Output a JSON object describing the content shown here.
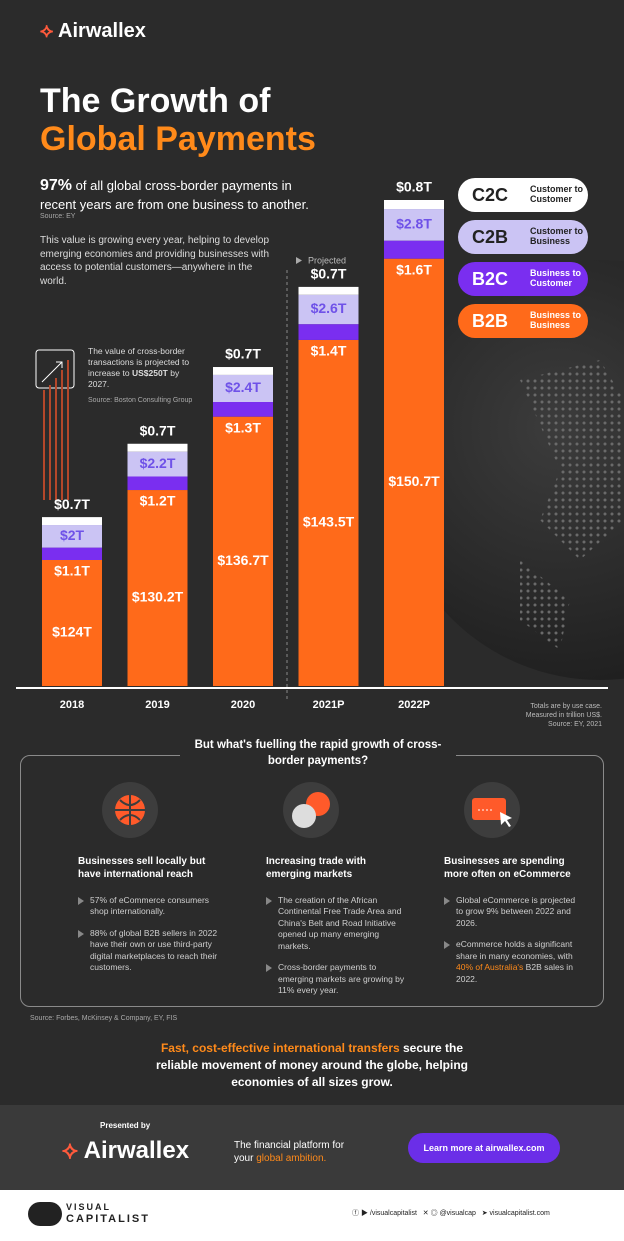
{
  "header": {
    "brand": "Airwallex",
    "title_line1": "The Growth of",
    "title_line2": "Global Payments"
  },
  "intro": {
    "stat": "97%",
    "stat_text": "of all global cross-border payments in recent years are from one business to another.",
    "source": "Source: EY",
    "body": "This value is growing every year, helping to develop emerging economies and providing businesses with access to potential customers—anywhere in the world.",
    "side_note_pre": "The value of cross-border transactions is projected to increase to ",
    "side_note_highlight": "US$250T",
    "side_note_post": " by 2027.",
    "side_source": "Source: Boston Consulting Group"
  },
  "chart_data": {
    "type": "bar",
    "stacked": true,
    "legend": "right",
    "projected_label": "Projected",
    "categories": [
      "2018",
      "2019",
      "2020",
      "2021P",
      "2022P"
    ],
    "series": [
      {
        "name": "B2B",
        "description": "Business to Business",
        "color": "#ff6a1a",
        "values": [
          124,
          130.2,
          136.7,
          143.5,
          150.7
        ],
        "value_labels": [
          "$124T",
          "$130.2T",
          "$136.7T",
          "$143.5T",
          "$150.7T"
        ]
      },
      {
        "name": "B2C",
        "description": "Business to Customer",
        "color": "#7a2ef0",
        "values": [
          1.1,
          1.2,
          1.3,
          1.4,
          1.6
        ],
        "value_labels": [
          "$1.1T",
          "$1.2T",
          "$1.3T",
          "$1.4T",
          "$1.6T"
        ]
      },
      {
        "name": "C2B",
        "description": "Customer to Business",
        "color": "#cbc4f4",
        "values": [
          2,
          2.2,
          2.4,
          2.6,
          2.8
        ],
        "value_labels": [
          "$2T",
          "$2.2T",
          "$2.4T",
          "$2.6T",
          "$2.8T"
        ]
      },
      {
        "name": "C2C",
        "description": "Customer to Customer",
        "color": "#ffffff",
        "values": [
          0.7,
          0.7,
          0.7,
          0.7,
          0.8
        ],
        "value_labels": [
          "$0.7T",
          "$0.7T",
          "$0.7T",
          "$0.7T",
          "$0.8T"
        ]
      }
    ],
    "notes": [
      "Totals are by use case.",
      "Measured in trillion US$.",
      "Source: EY, 2021"
    ]
  },
  "drivers": {
    "question": "But what's fuelling the rapid growth of cross-border payments?",
    "columns": [
      {
        "heading": "Businesses sell locally but have international reach",
        "bullets": [
          "57% of eCommerce consumers shop internationally.",
          "88% of global B2B sellers in 2022 have their own or use third-party digital marketplaces to reach their customers."
        ]
      },
      {
        "heading": "Increasing trade with emerging markets",
        "bullets": [
          "The creation of the African Continental Free Trade Area and China's Belt and Road Initiative opened up many emerging markets.",
          "Cross-border payments to emerging markets are growing by 11% every year."
        ]
      },
      {
        "heading": "Businesses are spending more often on eCommerce",
        "bullets": [
          "Global eCommerce is projected to grow 9% between 2022 and 2026."
        ],
        "last_bullet_pre": "eCommerce holds a significant share in many economies, with ",
        "last_bullet_highlight": "40% of Australia's",
        "last_bullet_post": " B2B sales in 2022."
      }
    ],
    "source": "Source: Forbes, McKinsey & Company, EY, FIS"
  },
  "closing": {
    "highlight": "Fast, cost-effective international transfers",
    "rest": " secure the reliable movement of money around the globe, helping economies of all sizes grow."
  },
  "footer": {
    "presented_by": "Presented by",
    "brand": "Airwallex",
    "tagline_pre": "The financial platform for your ",
    "tagline_highlight": "global ambition.",
    "button": "Learn more at airwallex.com"
  },
  "credits": {
    "brand_top": "VISUAL",
    "brand_bottom": "CAPITALIST",
    "social_1": "/visualcapitalist",
    "social_2": "@visualcap",
    "website": "visualcapitalist.com"
  }
}
